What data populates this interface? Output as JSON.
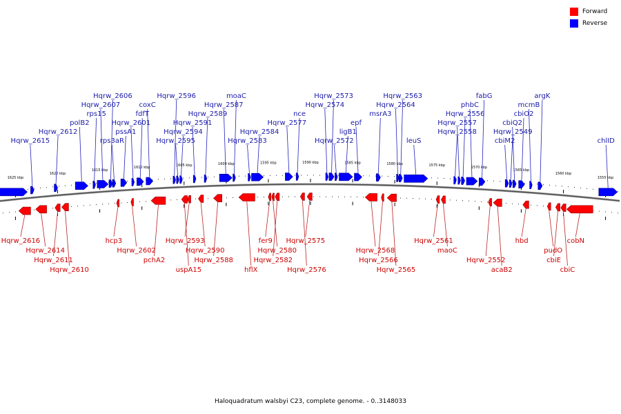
{
  "legend": {
    "forward_label": "Forward",
    "reverse_label": "Reverse",
    "forward_color": "#ff0000",
    "reverse_color": "#0000ff"
  },
  "caption": "Haloquadratum walsbyi C23, complete genome. - 0..3148033",
  "axis": {
    "start_kbp": 1627,
    "end_kbp": 1553,
    "ticks": [
      "1625 kbp",
      "1620 kbp",
      "1615 kbp",
      "1610 kbp",
      "1605 kbp",
      "1600 kbp",
      "1595 kbp",
      "1590 kbp",
      "1585 kbp",
      "1580 kbp",
      "1575 kbp",
      "1570 kbp",
      "1565 kbp",
      "1560 kbp",
      "1555 kbp"
    ]
  },
  "reverse_features": [
    {
      "label": "",
      "start": 1626.9,
      "end": 1623.6
    },
    {
      "label": "Hqrw_2615",
      "start": 1623.2,
      "end": 1622.8
    },
    {
      "label": "Hqrw_2612",
      "start": 1620.4,
      "end": 1620.0
    },
    {
      "label": "polB2",
      "start": 1617.9,
      "end": 1616.4
    },
    {
      "label": "rps15",
      "start": 1615.8,
      "end": 1615.5
    },
    {
      "label": "Hqrw_2607",
      "start": 1615.3,
      "end": 1614.0
    },
    {
      "label": "Hqrw_2606",
      "start": 1613.9,
      "end": 1613.5
    },
    {
      "label": "rps3aR",
      "start": 1613.5,
      "end": 1613.1
    },
    {
      "label": "pssA1",
      "start": 1612.5,
      "end": 1611.8
    },
    {
      "label": "Hqrw_2601",
      "start": 1611.2,
      "end": 1610.9
    },
    {
      "label": "fdfT",
      "start": 1610.6,
      "end": 1609.8
    },
    {
      "label": "coxC",
      "start": 1609.5,
      "end": 1608.7
    },
    {
      "label": "Hqrw_2596",
      "start": 1606.3,
      "end": 1606.0
    },
    {
      "label": "Hqrw_2595",
      "start": 1605.9,
      "end": 1605.6
    },
    {
      "label": "Hqrw_2594",
      "start": 1605.5,
      "end": 1605.2
    },
    {
      "label": "Hqrw_2591",
      "start": 1603.9,
      "end": 1603.6
    },
    {
      "label": "Hqrw_2589",
      "start": 1602.6,
      "end": 1602.3
    },
    {
      "label": "Hqrw_2587",
      "start": 1600.8,
      "end": 1599.3
    },
    {
      "label": "moaC",
      "start": 1599.2,
      "end": 1598.9
    },
    {
      "label": "Hqrw_2583",
      "start": 1597.4,
      "end": 1597.1
    },
    {
      "label": "Hqrw_2584",
      "start": 1597.0,
      "end": 1595.6
    },
    {
      "label": "Hqrw_2577",
      "start": 1593.0,
      "end": 1592.1
    },
    {
      "label": "nce",
      "start": 1591.7,
      "end": 1591.4
    },
    {
      "label": "Hqrw_2574",
      "start": 1588.2,
      "end": 1587.9
    },
    {
      "label": "Hqrw_2573",
      "start": 1587.8,
      "end": 1587.2
    },
    {
      "label": "Hqrw_2572",
      "start": 1587.1,
      "end": 1586.8
    },
    {
      "label": "ligB1",
      "start": 1586.6,
      "end": 1585.0
    },
    {
      "label": "epf",
      "start": 1584.8,
      "end": 1583.9
    },
    {
      "label": "msrA3",
      "start": 1582.2,
      "end": 1581.7
    },
    {
      "label": "Hqrw_2564",
      "start": 1579.8,
      "end": 1579.5
    },
    {
      "label": "Hqrw_2563",
      "start": 1579.5,
      "end": 1579.1
    },
    {
      "label": "leuS",
      "start": 1578.9,
      "end": 1576.1
    },
    {
      "label": "Hqrw_2558",
      "start": 1573.0,
      "end": 1572.7
    },
    {
      "label": "Hqrw_2557",
      "start": 1572.5,
      "end": 1572.2
    },
    {
      "label": "Hqrw_2556",
      "start": 1572.1,
      "end": 1571.7
    },
    {
      "label": "phbC",
      "start": 1571.5,
      "end": 1570.2
    },
    {
      "label": "fabG",
      "start": 1570.0,
      "end": 1569.3
    },
    {
      "label": "cbiM2",
      "start": 1566.9,
      "end": 1566.5
    },
    {
      "label": "Hqrw_2549",
      "start": 1566.4,
      "end": 1566.1
    },
    {
      "label": "cbiQ2",
      "start": 1566.0,
      "end": 1565.6
    },
    {
      "label": "cbiO2",
      "start": 1565.3,
      "end": 1564.6
    },
    {
      "label": "mcmB",
      "start": 1564.0,
      "end": 1563.7
    },
    {
      "label": "argK",
      "start": 1563.0,
      "end": 1562.5
    },
    {
      "label": "chlID",
      "start": 1555.8,
      "end": 1553.6
    }
  ],
  "forward_features": [
    {
      "label": "Hqrw_2616",
      "start": 1624.6,
      "end": 1623.2
    },
    {
      "label": "Hqrw_2614",
      "start": 1622.6,
      "end": 1621.3
    },
    {
      "label": "Hqrw_2611",
      "start": 1620.3,
      "end": 1619.7
    },
    {
      "label": "Hqrw_2610",
      "start": 1619.5,
      "end": 1618.7
    },
    {
      "label": "hcp3",
      "start": 1613.0,
      "end": 1612.7
    },
    {
      "label": "Hqrw_2602",
      "start": 1611.3,
      "end": 1611.0
    },
    {
      "label": "pchA2",
      "start": 1608.9,
      "end": 1607.2
    },
    {
      "label": "uspA15",
      "start": 1605.3,
      "end": 1604.6
    },
    {
      "label": "Hqrw_2593",
      "start": 1604.6,
      "end": 1604.2
    },
    {
      "label": "Hqrw_2590",
      "start": 1603.3,
      "end": 1602.7
    },
    {
      "label": "Hqrw_2588",
      "start": 1601.5,
      "end": 1600.5
    },
    {
      "label": "hflX",
      "start": 1598.5,
      "end": 1596.6
    },
    {
      "label": "fer9",
      "start": 1595.0,
      "end": 1594.7
    },
    {
      "label": "Hqrw_2580",
      "start": 1594.6,
      "end": 1594.3
    },
    {
      "label": "Hqrw_2582",
      "start": 1594.2,
      "end": 1593.7
    },
    {
      "label": "Hqrw_2576",
      "start": 1591.2,
      "end": 1590.7
    },
    {
      "label": "Hqrw_2575",
      "start": 1590.4,
      "end": 1589.8
    },
    {
      "label": "Hqrw_2568",
      "start": 1583.5,
      "end": 1582.1
    },
    {
      "label": "Hqrw_2566",
      "start": 1581.6,
      "end": 1581.3
    },
    {
      "label": "Hqrw_2565",
      "start": 1580.9,
      "end": 1579.8
    },
    {
      "label": "Hqrw_2561",
      "start": 1575.1,
      "end": 1574.7
    },
    {
      "label": "maoC",
      "start": 1574.5,
      "end": 1574.0
    },
    {
      "label": "Hqrw_2552",
      "start": 1568.9,
      "end": 1568.5
    },
    {
      "label": "acaB2",
      "start": 1568.3,
      "end": 1567.3
    },
    {
      "label": "hbd",
      "start": 1564.8,
      "end": 1564.1
    },
    {
      "label": "pudO",
      "start": 1561.9,
      "end": 1561.5
    },
    {
      "label": "cbiE",
      "start": 1560.9,
      "end": 1560.4
    },
    {
      "label": "cbiC",
      "start": 1560.3,
      "end": 1559.7
    },
    {
      "label": "cobN",
      "start": 1559.6,
      "end": 1556.5
    }
  ]
}
